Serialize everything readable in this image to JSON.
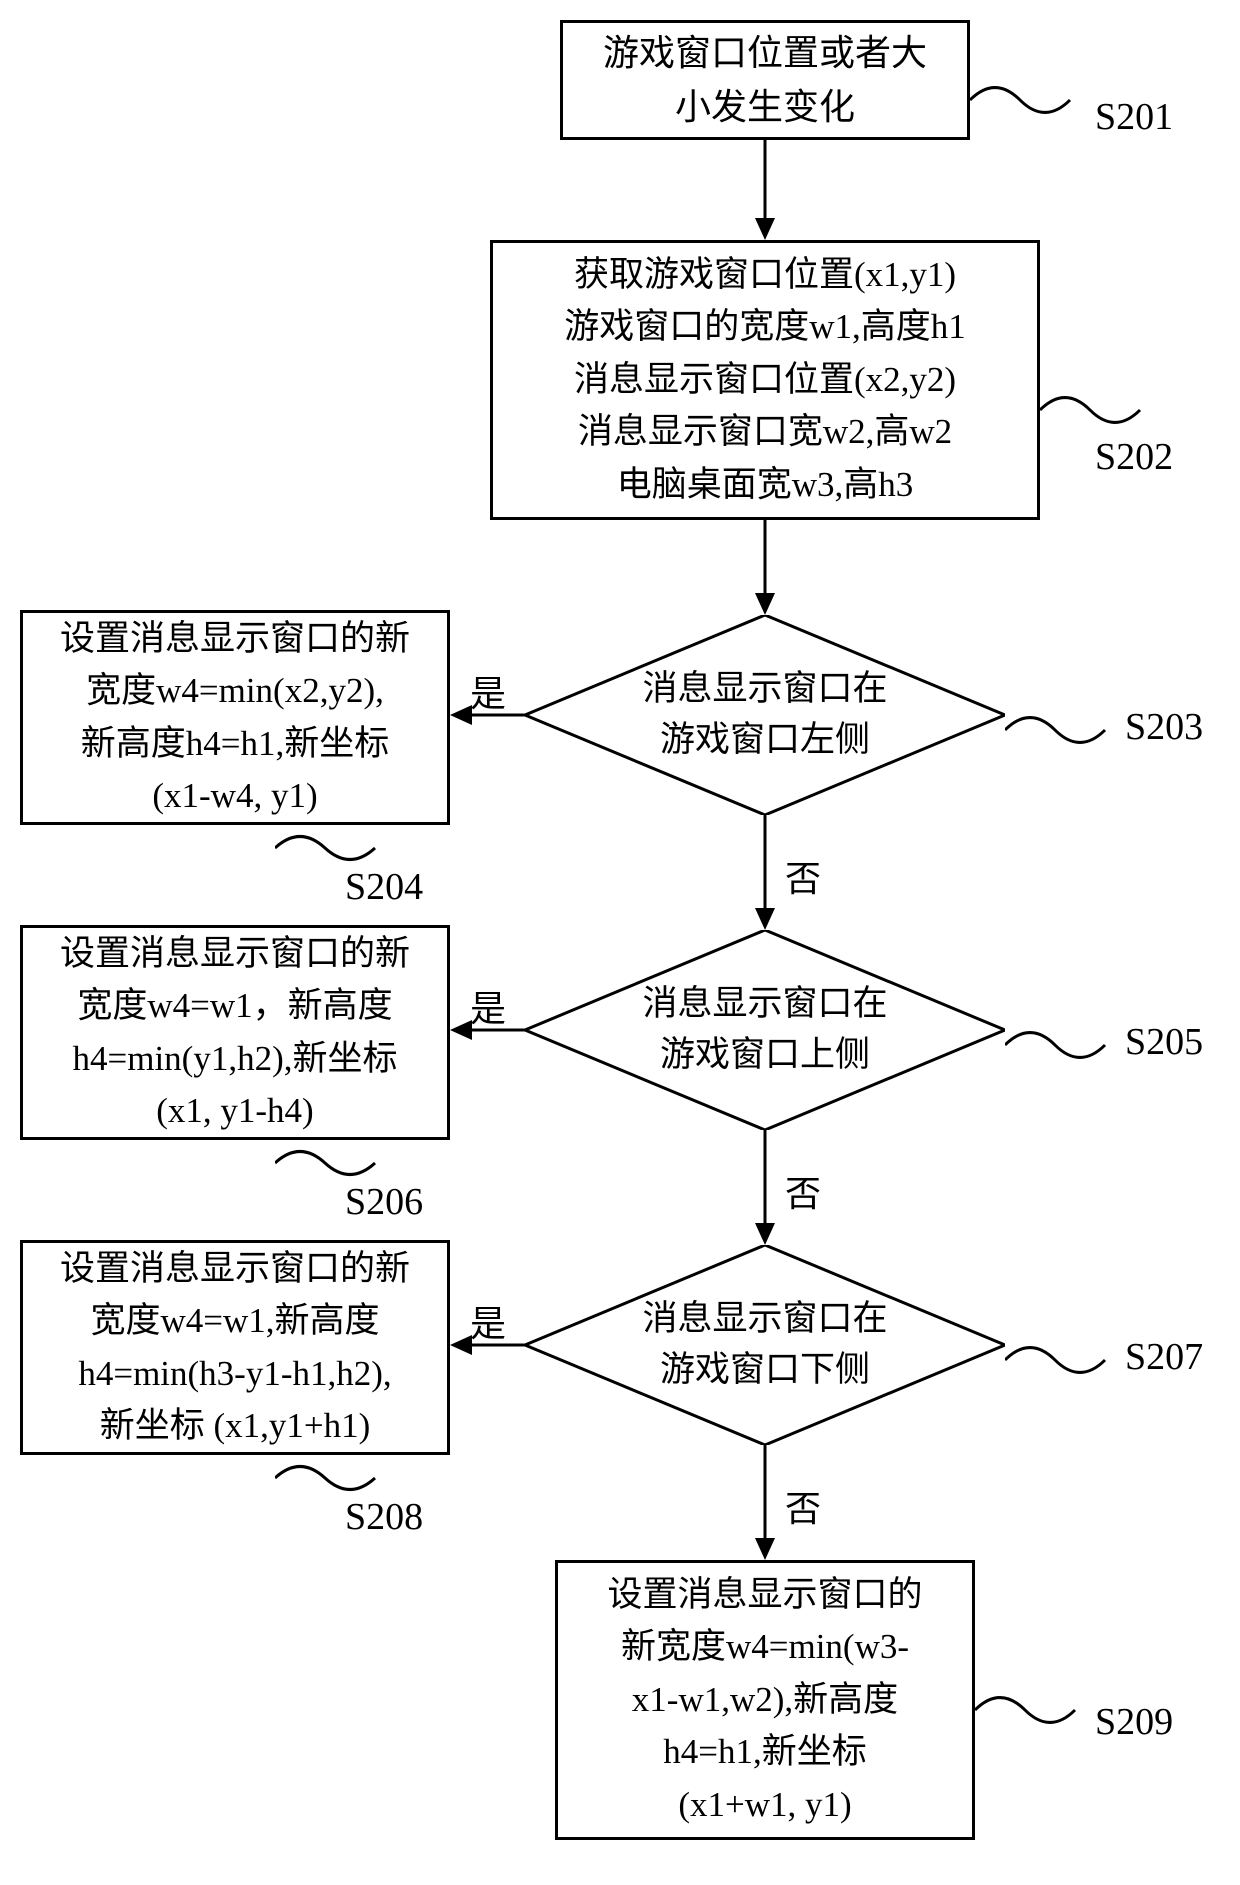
{
  "style": {
    "stroke": "#000000",
    "stroke_width": 3,
    "font_size_box": 36,
    "font_size_label": 38,
    "arrow_head": 18
  },
  "nodes": {
    "s201": {
      "type": "rect",
      "text": "游戏窗口位置或者大\n小发生变化",
      "step": "S201"
    },
    "s202": {
      "type": "rect",
      "text": "获取游戏窗口位置(x1,y1)\n游戏窗口的宽度w1,高度h1\n消息显示窗口位置(x2,y2)\n消息显示窗口宽w2,高w2\n电脑桌面宽w3,高h3",
      "step": "S202"
    },
    "s203": {
      "type": "diamond",
      "text": "消息显示窗口在\n游戏窗口左侧",
      "step": "S203"
    },
    "s204": {
      "type": "rect",
      "text": "设置消息显示窗口的新\n宽度w4=min(x2,y2),\n新高度h4=h1,新坐标\n(x1-w4, y1)",
      "step": "S204"
    },
    "s205": {
      "type": "diamond",
      "text": "消息显示窗口在\n游戏窗口上侧",
      "step": "S205"
    },
    "s206": {
      "type": "rect",
      "text": "设置消息显示窗口的新\n宽度w4=w1，新高度\nh4=min(y1,h2),新坐标\n(x1, y1-h4)",
      "step": "S206"
    },
    "s207": {
      "type": "diamond",
      "text": "消息显示窗口在\n游戏窗口下侧",
      "step": "S207"
    },
    "s208": {
      "type": "rect",
      "text": "设置消息显示窗口的新\n宽度w4=w1,新高度\nh4=min(h3-y1-h1,h2),\n新坐标 (x1,y1+h1)",
      "step": "S208"
    },
    "s209": {
      "type": "rect",
      "text": "设置消息显示窗口的\n新宽度w4=min(w3-\nx1-w1,w2),新高度\nh4=h1,新坐标\n(x1+w1, y1)",
      "step": "S209"
    }
  },
  "edge_labels": {
    "yes": "是",
    "no": "否"
  }
}
